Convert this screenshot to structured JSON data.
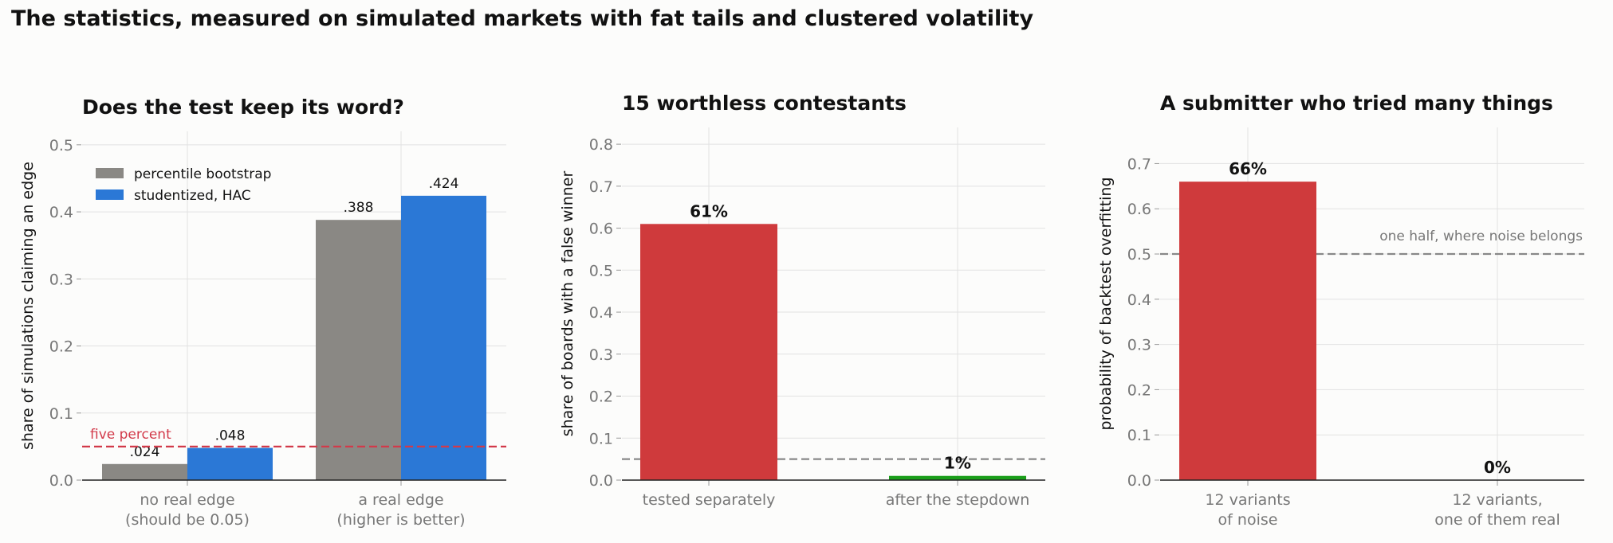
{
  "figure": {
    "title": "The statistics, measured on simulated markets with fat tails and clustered volatility"
  },
  "colors": {
    "percentile_bootstrap": "#8a8884",
    "studentized_hac": "#2b78d6",
    "red_bar": "#cf3a3c",
    "green_bar": "#1a9e1a",
    "five_percent_line": "#d23a4a",
    "reference_line": "#888888",
    "tick_text": "#777777",
    "grid": "#e2e2e2"
  },
  "chart_data": [
    {
      "type": "bar",
      "title": "Does the test keep its word?",
      "ylabel": "share of simulations claiming an edge",
      "xlabel": "",
      "ylim": [
        0,
        0.52
      ],
      "yticks": [
        "0.0",
        "0.1",
        "0.2",
        "0.3",
        "0.4",
        "0.5"
      ],
      "grid": true,
      "legend": "top-left",
      "categories": [
        [
          "no real edge",
          "(should be 0.05)"
        ],
        [
          "a real edge",
          "(higher is better)"
        ]
      ],
      "series": [
        {
          "name": "percentile bootstrap",
          "values": [
            0.024,
            0.388
          ],
          "labels": [
            ".024",
            ".388"
          ]
        },
        {
          "name": "studentized, HAC",
          "values": [
            0.048,
            0.424
          ],
          "labels": [
            ".048",
            ".424"
          ]
        }
      ],
      "reference_line": {
        "value": 0.05,
        "label": "five percent"
      }
    },
    {
      "type": "bar",
      "title": "15 worthless contestants",
      "ylabel": "share of boards with a false winner",
      "xlabel": "",
      "ylim": [
        0,
        0.84
      ],
      "yticks": [
        "0.0",
        "0.1",
        "0.2",
        "0.3",
        "0.4",
        "0.5",
        "0.6",
        "0.7",
        "0.8"
      ],
      "grid": true,
      "categories": [
        [
          "tested separately"
        ],
        [
          "after the stepdown"
        ]
      ],
      "values": [
        0.61,
        0.01
      ],
      "labels": [
        "61%",
        "1%"
      ],
      "reference_line": {
        "value": 0.05,
        "label": ""
      }
    },
    {
      "type": "bar",
      "title": "A submitter who tried many things",
      "ylabel": "probability of backtest overfitting",
      "xlabel": "",
      "ylim": [
        0,
        0.78
      ],
      "yticks": [
        "0.0",
        "0.1",
        "0.2",
        "0.3",
        "0.4",
        "0.5",
        "0.6",
        "0.7"
      ],
      "grid": true,
      "categories": [
        [
          "12 variants",
          "of noise"
        ],
        [
          "12 variants,",
          "one of them real"
        ]
      ],
      "values": [
        0.66,
        0.0
      ],
      "labels": [
        "66%",
        "0%"
      ],
      "reference_line": {
        "value": 0.5,
        "label": "one half, where noise belongs"
      }
    }
  ]
}
